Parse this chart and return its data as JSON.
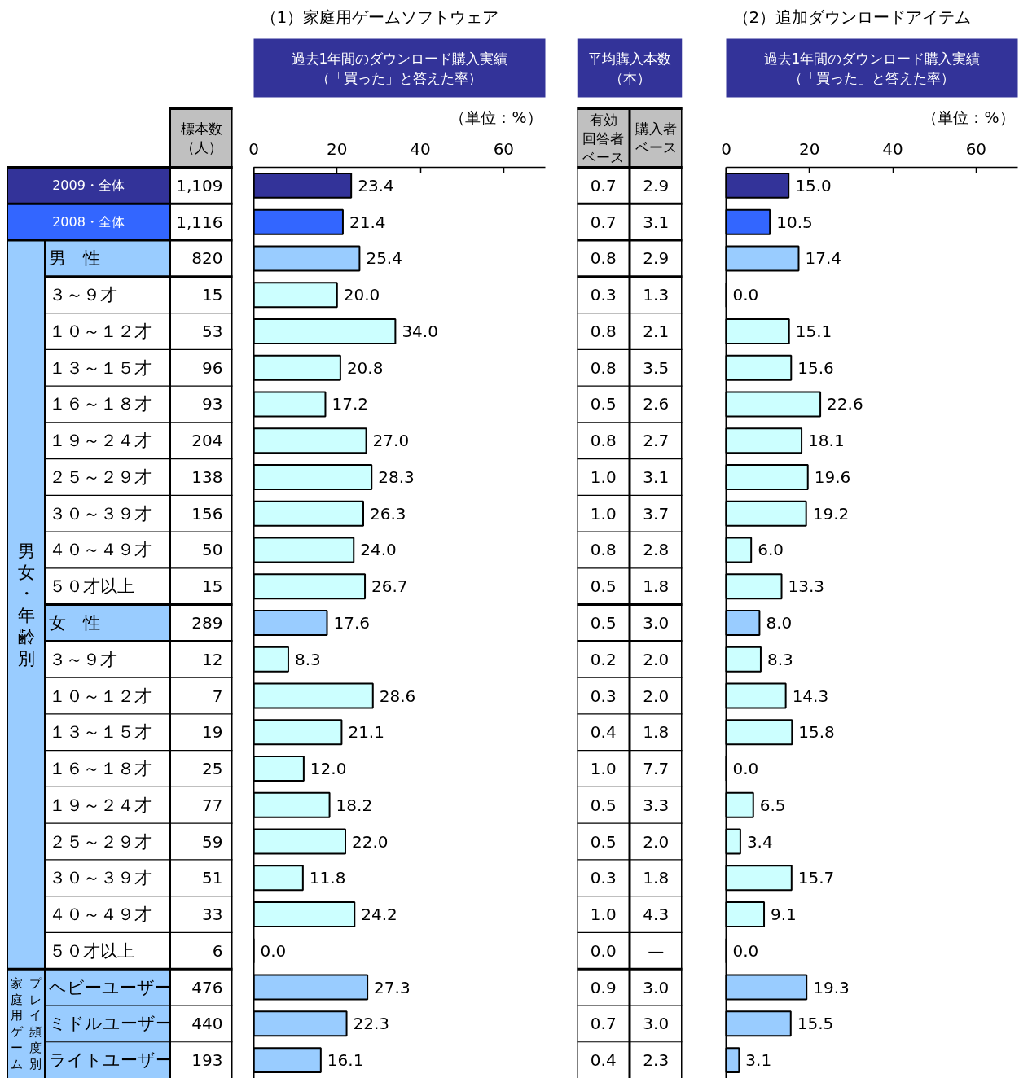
{
  "chart_data": [
    {
      "type": "heatmap",
      "categories": [
        "標本数（人）"
      ],
      "y_categories": [
        "2009・全体",
        "2008・全体",
        "男　性",
        "３～９才",
        "１０～１２才",
        "１３～１５才",
        "１６～１８才",
        "１９～２４才",
        "２５～２９才",
        "３０～３９才",
        "４０～４９才",
        "５０才以上",
        "女　性",
        "３～９才",
        "１０～１２才",
        "１３～１５才",
        "１６～１８才",
        "１９～２４才",
        "２５～２９才",
        "３０～３９才",
        "４０～４９才",
        "５０才以上",
        "ヘビーユーザー",
        "ミドルユーザー",
        "ライトユーザー"
      ],
      "cells": [
        [
          1109
        ],
        [
          1116
        ],
        [
          820
        ],
        [
          15
        ],
        [
          53
        ],
        [
          96
        ],
        [
          93
        ],
        [
          204
        ],
        [
          138
        ],
        [
          156
        ],
        [
          50
        ],
        [
          15
        ],
        [
          289
        ],
        [
          12
        ],
        [
          7
        ],
        [
          19
        ],
        [
          25
        ],
        [
          77
        ],
        [
          59
        ],
        [
          51
        ],
        [
          33
        ],
        [
          6
        ],
        [
          476
        ],
        [
          440
        ],
        [
          193
        ]
      ],
      "cell_labels": [
        [
          "1,109"
        ],
        [
          "1,116"
        ],
        [
          "820"
        ],
        [
          "15"
        ],
        [
          "53"
        ],
        [
          "96"
        ],
        [
          "93"
        ],
        [
          "204"
        ],
        [
          "138"
        ],
        [
          "156"
        ],
        [
          "50"
        ],
        [
          "15"
        ],
        [
          "289"
        ],
        [
          "12"
        ],
        [
          "7"
        ],
        [
          "19"
        ],
        [
          "25"
        ],
        [
          "77"
        ],
        [
          "59"
        ],
        [
          "51"
        ],
        [
          "33"
        ],
        [
          "6"
        ],
        [
          "476"
        ],
        [
          "440"
        ],
        [
          "193"
        ]
      ],
      "colors": [
        "#333399",
        "#3366ff",
        "#99ccff",
        "#ffffff",
        "#ffffff",
        "#ffffff",
        "#ffffff",
        "#ffffff",
        "#ffffff",
        "#ffffff",
        "#ffffff",
        "#ffffff",
        "#99ccff",
        "#ffffff",
        "#ffffff",
        "#ffffff",
        "#ffffff",
        "#ffffff",
        "#ffffff",
        "#ffffff",
        "#ffffff",
        "#ffffff",
        "#99ccff",
        "#99ccff",
        "#99ccff"
      ],
      "annotations": [
        "男女・年齢別",
        "家庭用ゲーム",
        "プレイ頻度別"
      ]
    },
    {
      "type": "bar",
      "orientation": "horizontal",
      "title": "（1）家庭用ゲームソフトウェア",
      "subtitle": "過去1年間のダウンロード購入実績（「買った」と答えた率）",
      "categories": [
        "2009・全体",
        "2008・全体",
        "男　性",
        "３～９才",
        "１０～１２才",
        "１３～１５才",
        "１６～１８才",
        "１９～２４才",
        "２５～２９才",
        "３０～３９才",
        "４０～４９才",
        "５０才以上",
        "女　性",
        "３～９才",
        "１０～１２才",
        "１３～１５才",
        "１６～１８才",
        "１９～２４才",
        "２５～２９才",
        "３０～３９才",
        "４０～４９才",
        "５０才以上",
        "ヘビーユーザー",
        "ミドルユーザー",
        "ライトユーザー"
      ],
      "values": [
        23.4,
        21.4,
        25.4,
        20.0,
        34.0,
        20.8,
        17.2,
        27.0,
        28.3,
        26.3,
        24.0,
        26.7,
        17.6,
        8.3,
        28.6,
        21.1,
        12.0,
        18.2,
        22.0,
        11.8,
        24.2,
        0.0,
        27.3,
        22.3,
        16.1
      ],
      "value_labels": [
        "23.4",
        "21.4",
        "25.4",
        "20.0",
        "34.0",
        "20.8",
        "17.2",
        "27.0",
        "28.3",
        "26.3",
        "24.0",
        "26.7",
        "17.6",
        "8.3",
        "28.6",
        "21.1",
        "12.0",
        "18.2",
        "22.0",
        "11.8",
        "24.2",
        "0.0",
        "27.3",
        "22.3",
        "16.1"
      ],
      "colors": [
        "#333399",
        "#3366ff",
        "#99ccff",
        "#ccffff",
        "#ccffff",
        "#ccffff",
        "#ccffff",
        "#ccffff",
        "#ccffff",
        "#ccffff",
        "#ccffff",
        "#ccffff",
        "#99ccff",
        "#ccffff",
        "#ccffff",
        "#ccffff",
        "#ccffff",
        "#ccffff",
        "#ccffff",
        "#ccffff",
        "#ccffff",
        "#ccffff",
        "#99ccff",
        "#99ccff",
        "#99ccff"
      ],
      "xlim": [
        0,
        70
      ],
      "xticks": [
        0,
        20,
        40,
        60
      ],
      "tick_labels": "x",
      "annotations": [
        "（単位：%）"
      ]
    },
    {
      "type": "heatmap",
      "title": "平均購入本数（本）",
      "categories": [
        "有効回答者ベース",
        "購入者ベース"
      ],
      "y_categories": [
        "2009・全体",
        "2008・全体",
        "男　性",
        "３～９才",
        "１０～１２才",
        "１３～１５才",
        "１６～１８才",
        "１９～２４才",
        "２５～２９才",
        "３０～３９才",
        "４０～４９才",
        "５０才以上",
        "女　性",
        "３～９才",
        "１０～１２才",
        "１３～１５才",
        "１６～１８才",
        "１９～２４才",
        "２５～２９才",
        "３０～３９才",
        "４０～４９才",
        "５０才以上",
        "ヘビーユーザー",
        "ミドルユーザー",
        "ライトユーザー"
      ],
      "cells": [
        [
          0.7,
          2.9
        ],
        [
          0.7,
          3.1
        ],
        [
          0.8,
          2.9
        ],
        [
          0.3,
          1.3
        ],
        [
          0.8,
          2.1
        ],
        [
          0.8,
          3.5
        ],
        [
          0.5,
          2.6
        ],
        [
          0.8,
          2.7
        ],
        [
          1.0,
          3.1
        ],
        [
          1.0,
          3.7
        ],
        [
          0.8,
          2.8
        ],
        [
          0.5,
          1.8
        ],
        [
          0.5,
          3.0
        ],
        [
          0.2,
          2.0
        ],
        [
          0.3,
          2.0
        ],
        [
          0.4,
          1.8
        ],
        [
          1.0,
          7.7
        ],
        [
          0.5,
          3.3
        ],
        [
          0.5,
          2.0
        ],
        [
          0.3,
          1.8
        ],
        [
          1.0,
          4.3
        ],
        [
          0.0,
          null
        ],
        [
          0.9,
          3.0
        ],
        [
          0.7,
          3.0
        ],
        [
          0.4,
          2.3
        ]
      ],
      "cell_labels": [
        [
          "0.7",
          "2.9"
        ],
        [
          "0.7",
          "3.1"
        ],
        [
          "0.8",
          "2.9"
        ],
        [
          "0.3",
          "1.3"
        ],
        [
          "0.8",
          "2.1"
        ],
        [
          "0.8",
          "3.5"
        ],
        [
          "0.5",
          "2.6"
        ],
        [
          "0.8",
          "2.7"
        ],
        [
          "1.0",
          "3.1"
        ],
        [
          "1.0",
          "3.7"
        ],
        [
          "0.8",
          "2.8"
        ],
        [
          "0.5",
          "1.8"
        ],
        [
          "0.5",
          "3.0"
        ],
        [
          "0.2",
          "2.0"
        ],
        [
          "0.3",
          "2.0"
        ],
        [
          "0.4",
          "1.8"
        ],
        [
          "1.0",
          "7.7"
        ],
        [
          "0.5",
          "3.3"
        ],
        [
          "0.5",
          "2.0"
        ],
        [
          "0.3",
          "1.8"
        ],
        [
          "1.0",
          "4.3"
        ],
        [
          "0.0",
          "—"
        ],
        [
          "0.9",
          "3.0"
        ],
        [
          "0.7",
          "3.0"
        ],
        [
          "0.4",
          "2.3"
        ]
      ],
      "tick_labels": "x"
    },
    {
      "type": "bar",
      "orientation": "horizontal",
      "title": "（2）追加ダウンロードアイテム",
      "subtitle": "過去1年間のダウンロード購入実績（「買った」と答えた率）",
      "categories": [
        "2009・全体",
        "2008・全体",
        "男　性",
        "３～９才",
        "１０～１２才",
        "１３～１５才",
        "１６～１８才",
        "１９～２４才",
        "２５～２９才",
        "３０～３９才",
        "４０～４９才",
        "５０才以上",
        "女　性",
        "３～９才",
        "１０～１２才",
        "１３～１５才",
        "１６～１８才",
        "１９～２４才",
        "２５～２９才",
        "３０～３９才",
        "４０～４９才",
        "５０才以上",
        "ヘビーユーザー",
        "ミドルユーザー",
        "ライトユーザー"
      ],
      "values": [
        15.0,
        10.5,
        17.4,
        0.0,
        15.1,
        15.6,
        22.6,
        18.1,
        19.6,
        19.2,
        6.0,
        13.3,
        8.0,
        8.3,
        14.3,
        15.8,
        0.0,
        6.5,
        3.4,
        15.7,
        9.1,
        0.0,
        19.3,
        15.5,
        3.1
      ],
      "value_labels": [
        "15.0",
        "10.5",
        "17.4",
        "0.0",
        "15.1",
        "15.6",
        "22.6",
        "18.1",
        "19.6",
        "19.2",
        "6.0",
        "13.3",
        "8.0",
        "8.3",
        "14.3",
        "15.8",
        "0.0",
        "6.5",
        "3.4",
        "15.7",
        "9.1",
        "0.0",
        "19.3",
        "15.5",
        "3.1"
      ],
      "colors": [
        "#333399",
        "#3366ff",
        "#99ccff",
        "#ccffff",
        "#ccffff",
        "#ccffff",
        "#ccffff",
        "#ccffff",
        "#ccffff",
        "#ccffff",
        "#ccffff",
        "#ccffff",
        "#99ccff",
        "#ccffff",
        "#ccffff",
        "#ccffff",
        "#ccffff",
        "#ccffff",
        "#ccffff",
        "#ccffff",
        "#ccffff",
        "#ccffff",
        "#99ccff",
        "#99ccff",
        "#99ccff"
      ],
      "xlim": [
        0,
        70
      ],
      "xticks": [
        0,
        20,
        40,
        60
      ],
      "tick_labels": "x",
      "annotations": [
        "（単位：%）"
      ]
    }
  ]
}
